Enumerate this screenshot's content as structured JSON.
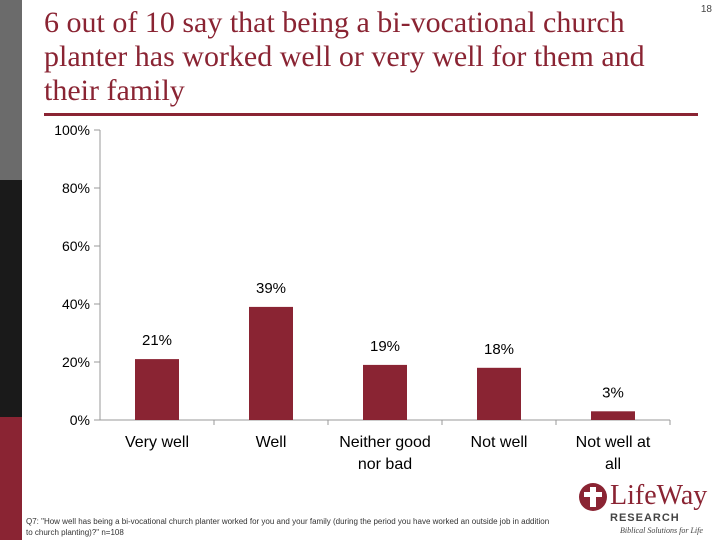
{
  "page_number": "18",
  "title": "6 out of 10 say that being a bi-vocational church planter has worked well or very well for them and their family",
  "colors": {
    "accent": "#8a2433",
    "bar": "#8a2433",
    "axis": "#999999"
  },
  "chart_data": {
    "type": "bar",
    "categories": [
      "Very well",
      "Well",
      "Neither good nor bad",
      "Not well",
      "Not well at all"
    ],
    "values": [
      21,
      39,
      19,
      18,
      3
    ],
    "data_labels": [
      "21%",
      "39%",
      "19%",
      "18%",
      "3%"
    ],
    "yticks": [
      "0%",
      "20%",
      "40%",
      "60%",
      "80%",
      "100%"
    ],
    "ylim": [
      0,
      100
    ],
    "grid": false,
    "title": "",
    "xlabel": "",
    "ylabel": ""
  },
  "footnote": "Q7: \"How well has being a bi-vocational church planter worked for you and your family (during the period you have worked an outside job in addition to church planting)?\" n=108",
  "logo": {
    "name": "LifeWay",
    "sub": "RESEARCH",
    "tagline": "Biblical Solutions for Life"
  }
}
